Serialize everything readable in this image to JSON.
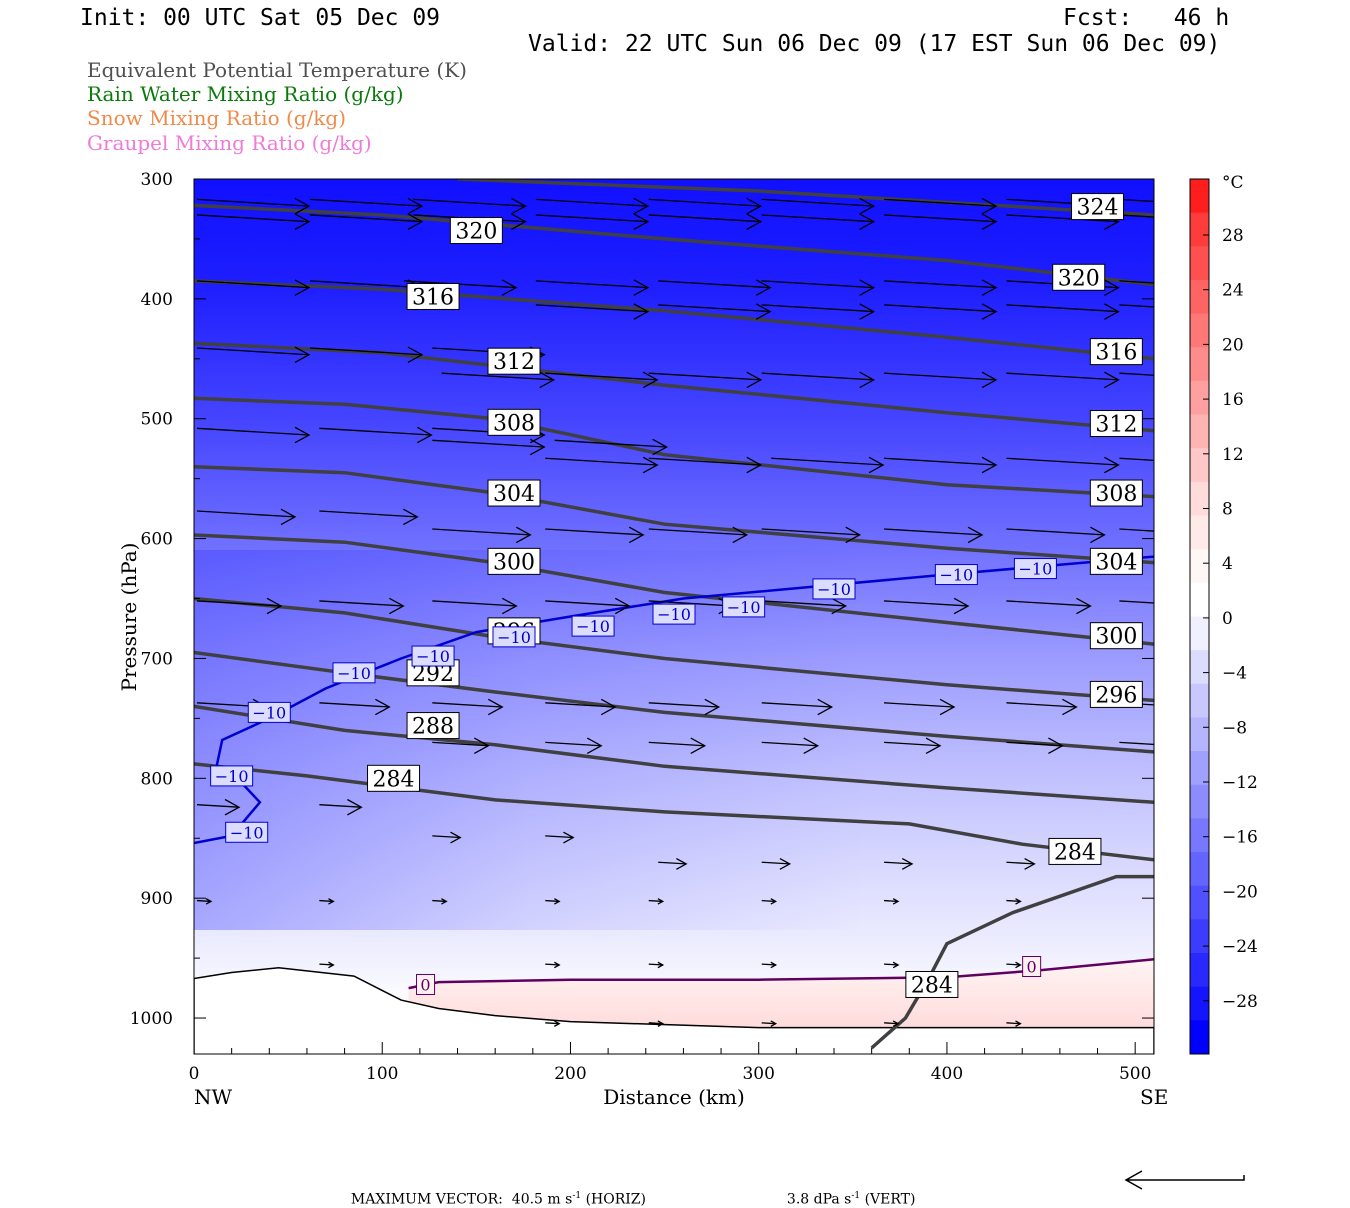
{
  "header": {
    "init": "Init: 00 UTC Sat 05 Dec 09",
    "fcst": "Fcst:   46 h",
    "valid": "Valid: 22 UTC Sun 06 Dec 09 (17 EST Sun 06 Dec 09)"
  },
  "legend": [
    {
      "label": "Equivalent Potential Temperature (K)",
      "color": "#505050"
    },
    {
      "label": "Rain Water Mixing Ratio (g/kg)",
      "color": "#0a7a0a"
    },
    {
      "label": "Snow Mixing Ratio (g/kg)",
      "color": "#f08a4a"
    },
    {
      "label": "Graupel Mixing Ratio (g/kg)",
      "color": "#f07ad8"
    }
  ],
  "footer": {
    "prefix": "MAXIMUM VECTOR:",
    "horiz_value": "40.5 m s",
    "horiz_exp": "-1",
    "horiz_tag": "(HORIZ)",
    "vert_value": "3.8 dPa s",
    "vert_exp": "-1",
    "vert_tag": "(VERT)"
  },
  "chart_data": {
    "type": "cross-section",
    "xlabel": "Distance (km)",
    "ylabel": "Pressure (hPa)",
    "xlim": [
      0,
      510
    ],
    "ylim": [
      1030,
      300
    ],
    "x_ticks": [
      0,
      100,
      200,
      300,
      400,
      500
    ],
    "y_ticks": [
      300,
      400,
      500,
      600,
      700,
      800,
      900,
      1000
    ],
    "x_end_labels": {
      "left": "NW",
      "right": "SE"
    },
    "colorbar": {
      "unit": "°C",
      "tick_labels": [
        "28",
        "24",
        "20",
        "16",
        "12",
        "8",
        "4",
        "0",
        "−4",
        "−8",
        "−12",
        "−16",
        "−20",
        "−24",
        "−28"
      ],
      "colors_top_to_bottom": [
        "#ff1e1e",
        "#ff3c3c",
        "#ff5050",
        "#ff6464",
        "#ff7878",
        "#ff8c8c",
        "#ffa0a0",
        "#ffb4b4",
        "#ffc8c8",
        "#ffdcdc",
        "#ffeaea",
        "#fff6f6",
        "#ffffff",
        "#f0f0ff",
        "#dcdcff",
        "#c8c8ff",
        "#b4b4ff",
        "#a0a0ff",
        "#8c8cff",
        "#7878ff",
        "#6464ff",
        "#5050ff",
        "#3c3cff",
        "#2828ff",
        "#1414ff",
        "#0000ff"
      ]
    },
    "theta_e_contours": [
      {
        "level": "324",
        "points": [
          [
            140,
            300
          ],
          [
            300,
            310
          ],
          [
            510,
            330
          ]
        ],
        "labels": [
          [
            480,
            323
          ]
        ]
      },
      {
        "level": "320",
        "points": [
          [
            0,
            322
          ],
          [
            100,
            330
          ],
          [
            250,
            350
          ],
          [
            400,
            368
          ],
          [
            510,
            388
          ]
        ],
        "labels": [
          [
            150,
            343
          ],
          [
            470,
            382
          ]
        ]
      },
      {
        "level": "316",
        "points": [
          [
            0,
            385
          ],
          [
            100,
            392
          ],
          [
            250,
            410
          ],
          [
            400,
            432
          ],
          [
            510,
            450
          ]
        ],
        "labels": [
          [
            127,
            398
          ],
          [
            490,
            444
          ]
        ]
      },
      {
        "level": "312",
        "points": [
          [
            0,
            437
          ],
          [
            100,
            445
          ],
          [
            250,
            472
          ],
          [
            400,
            495
          ],
          [
            510,
            510
          ]
        ],
        "labels": [
          [
            170,
            452
          ],
          [
            490,
            504
          ]
        ]
      },
      {
        "level": "308",
        "points": [
          [
            0,
            483
          ],
          [
            80,
            488
          ],
          [
            160,
            500
          ],
          [
            250,
            530
          ],
          [
            400,
            555
          ],
          [
            510,
            565
          ]
        ],
        "labels": [
          [
            170,
            503
          ],
          [
            490,
            562
          ]
        ]
      },
      {
        "level": "304",
        "points": [
          [
            0,
            540
          ],
          [
            80,
            545
          ],
          [
            160,
            562
          ],
          [
            250,
            588
          ],
          [
            400,
            608
          ],
          [
            510,
            620
          ]
        ],
        "labels": [
          [
            170,
            562
          ],
          [
            490,
            619
          ]
        ]
      },
      {
        "level": "300",
        "points": [
          [
            0,
            597
          ],
          [
            80,
            603
          ],
          [
            160,
            620
          ],
          [
            250,
            645
          ],
          [
            400,
            670
          ],
          [
            510,
            688
          ]
        ],
        "labels": [
          [
            170,
            619
          ],
          [
            490,
            681
          ]
        ]
      },
      {
        "level": "296",
        "points": [
          [
            0,
            650
          ],
          [
            80,
            662
          ],
          [
            160,
            682
          ],
          [
            250,
            700
          ],
          [
            400,
            722
          ],
          [
            510,
            735
          ]
        ],
        "labels": [
          [
            170,
            677
          ],
          [
            490,
            730
          ]
        ]
      },
      {
        "level": "292",
        "points": [
          [
            0,
            695
          ],
          [
            80,
            712
          ],
          [
            160,
            728
          ],
          [
            250,
            745
          ],
          [
            400,
            765
          ],
          [
            510,
            778
          ]
        ],
        "labels": [
          [
            127,
            712
          ]
        ]
      },
      {
        "level": "288",
        "points": [
          [
            0,
            740
          ],
          [
            80,
            760
          ],
          [
            160,
            772
          ],
          [
            250,
            790
          ],
          [
            400,
            808
          ],
          [
            510,
            820
          ]
        ],
        "labels": [
          [
            127,
            756
          ]
        ]
      },
      {
        "level": "284",
        "points": [
          [
            0,
            788
          ],
          [
            60,
            798
          ],
          [
            160,
            818
          ],
          [
            250,
            828
          ],
          [
            380,
            838
          ],
          [
            440,
            855
          ],
          [
            510,
            868
          ]
        ],
        "labels": [
          [
            106,
            800
          ],
          [
            468,
            861
          ]
        ]
      },
      {
        "level": "284",
        "points": [
          [
            360,
            1025
          ],
          [
            378,
            1000
          ],
          [
            390,
            968
          ],
          [
            400,
            938
          ],
          [
            435,
            912
          ],
          [
            490,
            882
          ],
          [
            510,
            882
          ]
        ],
        "labels": [
          [
            392,
            972
          ]
        ]
      }
    ],
    "temperature_contours": [
      {
        "level": "−10",
        "color": "#0000d0",
        "points": [
          [
            0,
            854
          ],
          [
            20,
            848
          ],
          [
            35,
            820
          ],
          [
            20,
            795
          ],
          [
            12,
            790
          ],
          [
            15,
            768
          ],
          [
            40,
            750
          ],
          [
            70,
            725
          ],
          [
            110,
            700
          ],
          [
            150,
            678
          ],
          [
            200,
            665
          ],
          [
            260,
            650
          ],
          [
            330,
            640
          ],
          [
            400,
            630
          ],
          [
            510,
            615
          ]
        ],
        "labels": [
          [
            28,
            845
          ],
          [
            20,
            798
          ],
          [
            40,
            745
          ],
          [
            85,
            712
          ],
          [
            127,
            698
          ],
          [
            170,
            682
          ],
          [
            212,
            673
          ],
          [
            255,
            663
          ],
          [
            292,
            657
          ],
          [
            340,
            642
          ],
          [
            405,
            630
          ],
          [
            447,
            625
          ]
        ]
      },
      {
        "level": "0",
        "color": "#600060",
        "points": [
          [
            114,
            975
          ],
          [
            130,
            970
          ],
          [
            200,
            968
          ],
          [
            300,
            968
          ],
          [
            400,
            966
          ],
          [
            450,
            960
          ],
          [
            510,
            951
          ]
        ],
        "labels": [
          [
            123,
            972
          ],
          [
            445,
            957
          ]
        ]
      }
    ],
    "terrain_pressure": [
      [
        0,
        967
      ],
      [
        20,
        962
      ],
      [
        45,
        958
      ],
      [
        85,
        965
      ],
      [
        110,
        985
      ],
      [
        130,
        992
      ],
      [
        160,
        998
      ],
      [
        200,
        1003
      ],
      [
        300,
        1008
      ],
      [
        510,
        1008
      ]
    ],
    "wind_vector_rows": [
      {
        "p": 317,
        "x": [
          0,
          60,
          115,
          180,
          240,
          300,
          365,
          430,
          490
        ],
        "u": [
          8,
          8,
          8,
          8,
          8,
          8,
          8,
          8,
          8
        ]
      },
      {
        "p": 330,
        "x": [
          0,
          60,
          115,
          180,
          240,
          300,
          365,
          430,
          490
        ],
        "u": [
          8,
          8,
          8,
          8,
          8,
          8,
          8,
          8,
          8
        ]
      },
      {
        "p": 385,
        "x": [
          0,
          60,
          110,
          180,
          245,
          300,
          365,
          430,
          490
        ],
        "u": [
          8,
          8,
          8,
          8,
          8,
          8,
          8,
          8,
          8
        ]
      },
      {
        "p": 405,
        "x": [
          180,
          245,
          300,
          365,
          430,
          490
        ],
        "u": [
          8,
          8,
          8,
          8,
          8,
          8
        ]
      },
      {
        "p": 441,
        "x": [
          0,
          60,
          125
        ],
        "u": [
          8,
          8,
          8
        ]
      },
      {
        "p": 462,
        "x": [
          130,
          185,
          240,
          300,
          365,
          430,
          490
        ],
        "u": [
          8,
          8,
          8,
          8,
          8,
          8,
          8
        ]
      },
      {
        "p": 508,
        "x": [
          0,
          65,
          125
        ],
        "u": [
          8,
          8,
          8
        ]
      },
      {
        "p": 518,
        "x": [
          125,
          190
        ],
        "u": [
          8,
          8
        ]
      },
      {
        "p": 533,
        "x": [
          185,
          240,
          305,
          365,
          430,
          490
        ],
        "u": [
          8,
          8,
          8,
          8,
          8,
          8
        ]
      },
      {
        "p": 577,
        "x": [
          0,
          65
        ],
        "u": [
          7,
          7
        ]
      },
      {
        "p": 592,
        "x": [
          125,
          185,
          240,
          300,
          365,
          430,
          490
        ],
        "u": [
          7,
          7,
          7,
          7,
          7,
          7,
          7
        ]
      },
      {
        "p": 652,
        "x": [
          0,
          65,
          125,
          185,
          240,
          300,
          365,
          430,
          490
        ],
        "u": [
          6,
          6,
          6,
          6,
          6,
          6,
          6,
          6,
          6
        ]
      },
      {
        "p": 737,
        "x": [
          0,
          65,
          125,
          185,
          240,
          300,
          365,
          430,
          490
        ],
        "u": [
          5,
          5,
          5,
          5,
          5,
          5,
          5,
          5,
          5
        ]
      },
      {
        "p": 770,
        "x": [
          125,
          185,
          240,
          300,
          365,
          430,
          490
        ],
        "u": [
          4,
          4,
          4,
          4,
          4,
          4,
          4
        ]
      },
      {
        "p": 822,
        "x": [
          0,
          65
        ],
        "u": [
          3,
          3
        ]
      },
      {
        "p": 848,
        "x": [
          125,
          185
        ],
        "u": [
          2,
          2
        ]
      },
      {
        "p": 870,
        "x": [
          245,
          300,
          365,
          430
        ],
        "u": [
          2,
          2,
          2,
          2
        ]
      },
      {
        "p": 902,
        "x": [
          0,
          65,
          125,
          185,
          240,
          300,
          365,
          430
        ],
        "u": [
          1,
          1,
          1,
          1,
          1,
          1,
          1,
          1
        ]
      },
      {
        "p": 955,
        "x": [
          65,
          185,
          240,
          300,
          365,
          430
        ],
        "u": [
          1,
          1,
          1,
          1,
          1,
          1
        ]
      },
      {
        "p": 1004,
        "x": [
          185,
          240,
          300,
          365,
          430
        ],
        "u": [
          1,
          1,
          1,
          1,
          1
        ]
      }
    ]
  }
}
